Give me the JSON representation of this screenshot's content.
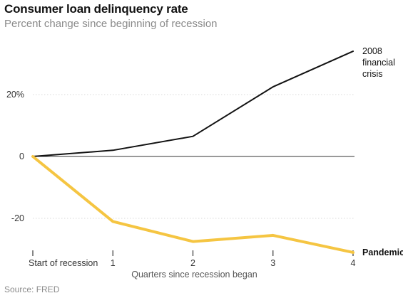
{
  "header": {
    "title": "Consumer loan delinquency rate",
    "subtitle": "Percent change since beginning of recession"
  },
  "footer": {
    "source": "Source: FRED"
  },
  "colors": {
    "crisis_2008": "#121212",
    "pandemic": "#f5c542",
    "zero_line": "#333333",
    "grid": "#d9d9d9",
    "text_muted": "#8a8a8a"
  },
  "chart_data": {
    "type": "line",
    "title": "Consumer loan delinquency rate",
    "subtitle": "Percent change since beginning of recession",
    "xlabel": "Quarters since recession began",
    "ylabel": "",
    "x": [
      0,
      1,
      2,
      3,
      4
    ],
    "x_tick_labels": [
      "Start of recession",
      "1",
      "2",
      "3",
      "4"
    ],
    "y_ticks": [
      20,
      0,
      -20
    ],
    "y_tick_labels": [
      "20%",
      "0",
      "-20"
    ],
    "ylim": [
      -31,
      40
    ],
    "grid": "horizontal",
    "series": [
      {
        "name": "2008 financial crisis",
        "label_lines": [
          "2008",
          "financial",
          "crisis"
        ],
        "values": [
          0,
          2,
          6.5,
          22.5,
          34
        ],
        "color": "#121212"
      },
      {
        "name": "Pandemic",
        "label_lines": [
          "Pandemic"
        ],
        "values": [
          0,
          -21,
          -27.5,
          -25.5,
          -31
        ],
        "color": "#f5c542"
      }
    ]
  }
}
